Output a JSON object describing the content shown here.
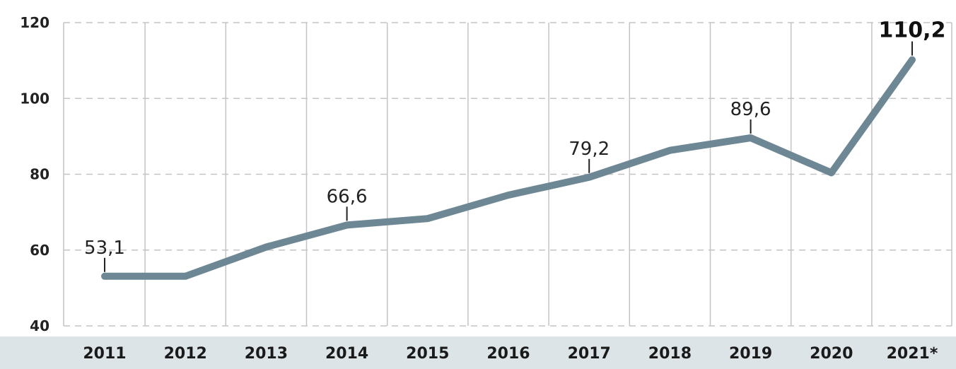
{
  "chart_data": {
    "type": "line",
    "title": "",
    "xlabel": "",
    "ylabel": "",
    "x": [
      "2011",
      "2012",
      "2013",
      "2014",
      "2015",
      "2016",
      "2017",
      "2018",
      "2019",
      "2020",
      "2021*"
    ],
    "series": [
      {
        "values": [
          53.1,
          53.1,
          60.8,
          66.6,
          68.3,
          74.5,
          79.2,
          86.3,
          89.6,
          80.4,
          110.2
        ]
      }
    ],
    "labeled_points": [
      {
        "index": 0,
        "label": "53,1"
      },
      {
        "index": 3,
        "label": "66,6"
      },
      {
        "index": 6,
        "label": "79,2"
      },
      {
        "index": 8,
        "label": "89,6"
      },
      {
        "index": 10,
        "label": "110,2",
        "emphasis": true
      }
    ],
    "y_ticks": [
      40,
      60,
      80,
      100,
      120
    ],
    "y_tick_labels": [
      "40",
      "60",
      "80",
      "100",
      "120"
    ],
    "ylim": [
      40,
      120
    ],
    "grid": true,
    "colors": {
      "line": "#6d8894",
      "grid": "#c4c4c4",
      "axis_band": "#dde4e8"
    }
  }
}
